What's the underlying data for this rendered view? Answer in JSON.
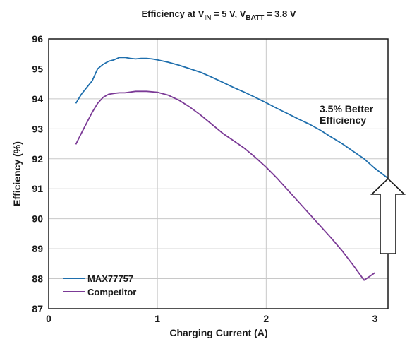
{
  "chart_data": {
    "type": "line",
    "title": {
      "prefix": "Efficiency at V",
      "sub1": "IN",
      "mid": " = 5 V, V",
      "sub2": "BATT",
      "suffix": " = 3.8 V"
    },
    "xlabel": "Charging Current (A)",
    "ylabel": "Efficiency (%)",
    "xlim": [
      0,
      3.12
    ],
    "ylim": [
      87,
      96
    ],
    "xticks": [
      "0",
      "1",
      "2",
      "3"
    ],
    "yticks": [
      "87",
      "88",
      "89",
      "90",
      "91",
      "92",
      "93",
      "94",
      "95",
      "96"
    ],
    "grid": true,
    "legend_position": "bottom-left",
    "annotation": [
      "3.5% Better",
      "Efficiency"
    ],
    "series": [
      {
        "name": "MAX77757",
        "color": "#1f6fad",
        "x": [
          0.25,
          0.3,
          0.35,
          0.4,
          0.45,
          0.5,
          0.55,
          0.6,
          0.65,
          0.7,
          0.75,
          0.8,
          0.85,
          0.9,
          0.95,
          1.0,
          1.1,
          1.2,
          1.3,
          1.4,
          1.5,
          1.6,
          1.7,
          1.8,
          1.9,
          2.0,
          2.1,
          2.2,
          2.3,
          2.4,
          2.5,
          2.6,
          2.7,
          2.8,
          2.9,
          3.0,
          3.12
        ],
        "values": [
          93.85,
          94.15,
          94.38,
          94.6,
          95.0,
          95.15,
          95.25,
          95.3,
          95.38,
          95.38,
          95.35,
          95.33,
          95.35,
          95.35,
          95.33,
          95.3,
          95.22,
          95.12,
          95.0,
          94.88,
          94.72,
          94.55,
          94.38,
          94.22,
          94.05,
          93.87,
          93.68,
          93.5,
          93.32,
          93.15,
          92.95,
          92.72,
          92.5,
          92.25,
          92.0,
          91.68,
          91.35
        ]
      },
      {
        "name": "Competitor",
        "color": "#7b3a96",
        "x": [
          0.25,
          0.3,
          0.35,
          0.4,
          0.45,
          0.5,
          0.55,
          0.6,
          0.65,
          0.7,
          0.8,
          0.9,
          1.0,
          1.1,
          1.2,
          1.3,
          1.4,
          1.5,
          1.6,
          1.7,
          1.8,
          1.9,
          2.0,
          2.1,
          2.2,
          2.3,
          2.4,
          2.5,
          2.6,
          2.7,
          2.8,
          2.9,
          3.0
        ],
        "values": [
          92.48,
          92.85,
          93.2,
          93.55,
          93.85,
          94.05,
          94.15,
          94.18,
          94.2,
          94.2,
          94.25,
          94.25,
          94.22,
          94.12,
          93.95,
          93.72,
          93.45,
          93.15,
          92.85,
          92.6,
          92.35,
          92.05,
          91.72,
          91.35,
          90.95,
          90.55,
          90.15,
          89.75,
          89.35,
          88.92,
          88.45,
          87.95,
          88.2
        ]
      }
    ]
  }
}
